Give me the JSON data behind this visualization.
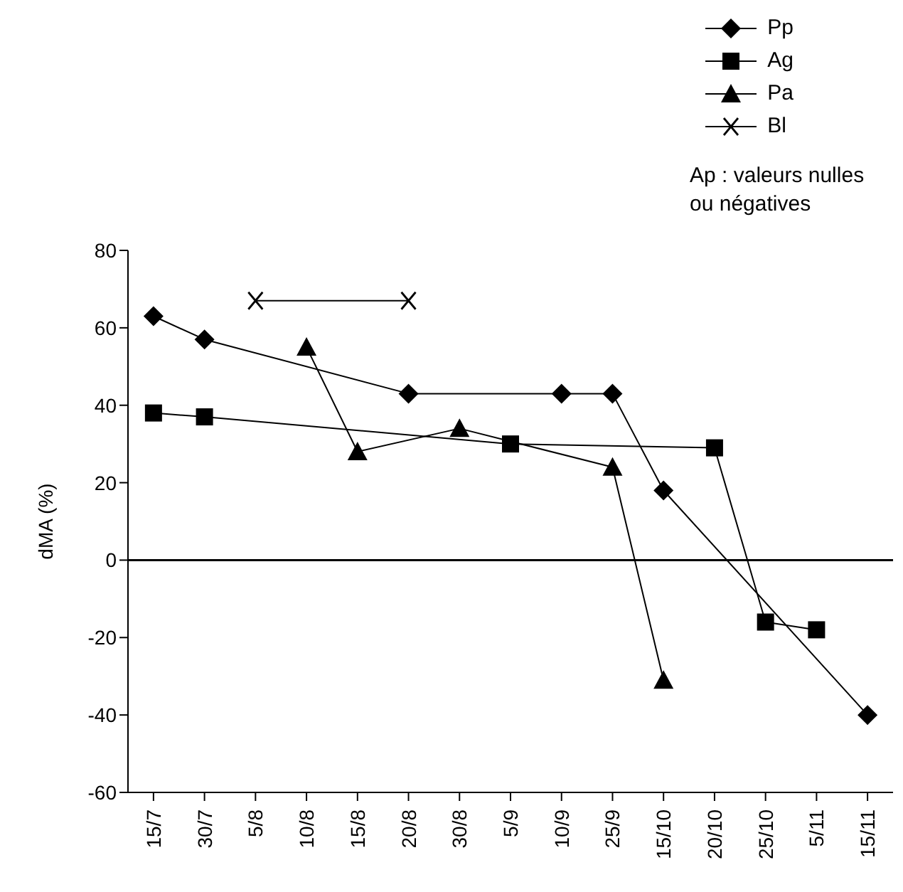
{
  "chart_data": {
    "type": "line",
    "ylabel": "dMA (%)",
    "legend": "top right",
    "annotations": [
      "Ap : valeurs nulles ou négatives"
    ],
    "categories": [
      "15/7",
      "30/7",
      "5/8",
      "10/8",
      "15/8",
      "20/8",
      "30/8",
      "5/9",
      "10/9",
      "25/9",
      "15/10",
      "20/10",
      "25/10",
      "5/11",
      "15/11"
    ],
    "ylim": [
      -60,
      80
    ],
    "yticks": [
      -60,
      -40,
      -20,
      0,
      20,
      40,
      60,
      80
    ],
    "ref_lines": [
      {
        "axis": "y",
        "value": 0,
        "color": "#000000"
      }
    ],
    "series": [
      {
        "name": "Pp",
        "color": "#000000",
        "marker": "diamond",
        "values": [
          63,
          57,
          null,
          null,
          null,
          43,
          null,
          null,
          43,
          43,
          18,
          null,
          null,
          null,
          -40
        ]
      },
      {
        "name": "Ag",
        "color": "#000000",
        "marker": "square",
        "values": [
          38,
          37,
          null,
          null,
          null,
          null,
          null,
          30,
          null,
          null,
          null,
          29,
          -16,
          -18,
          null
        ]
      },
      {
        "name": "Pa",
        "color": "#000000",
        "marker": "triangle",
        "values": [
          null,
          null,
          null,
          55,
          28,
          null,
          34,
          null,
          null,
          24,
          -31,
          null,
          null,
          null,
          null
        ]
      },
      {
        "name": "Bl",
        "color": "#000000",
        "marker": "cross",
        "values": [
          null,
          null,
          67,
          null,
          null,
          67,
          null,
          null,
          null,
          null,
          null,
          null,
          null,
          null,
          null
        ]
      }
    ]
  }
}
